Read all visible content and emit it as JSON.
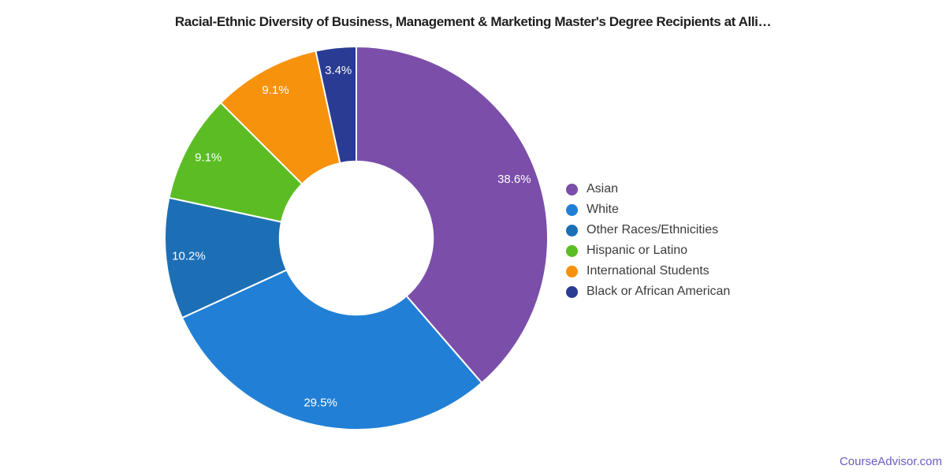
{
  "title": "Racial-Ethnic Diversity of Business, Management & Marketing Master's Degree Recipients at Alli…",
  "watermark": "CourseAdvisor.com",
  "colors": {
    "background": "#ffffff",
    "title_text": "#1f1f1f",
    "legend_text": "#3b3b3b",
    "watermark_text": "#6a5cc4",
    "slice_label_text": "#ffffff",
    "slice_divider": "#ffffff"
  },
  "chart_data": {
    "type": "pie",
    "subtype": "donut",
    "title": "Racial-Ethnic Diversity of Business, Management & Marketing Master's Degree Recipients at Alli…",
    "legend_position": "right",
    "start_angle_deg": 0,
    "direction": "clockwise",
    "inner_radius_ratio": 0.4,
    "label_radius_ratio": 0.88,
    "slices": [
      {
        "label": "Asian",
        "value": 38.6,
        "display": "38.6%",
        "color": "#7B4FA9"
      },
      {
        "label": "White",
        "value": 29.5,
        "display": "29.5%",
        "color": "#2180D6"
      },
      {
        "label": "Other Races/Ethnicities",
        "value": 10.2,
        "display": "10.2%",
        "color": "#1D6FB5"
      },
      {
        "label": "Hispanic or Latino",
        "value": 9.1,
        "display": "9.1%",
        "color": "#5BBD23"
      },
      {
        "label": "International Students",
        "value": 9.1,
        "display": "9.1%",
        "color": "#F7920D"
      },
      {
        "label": "Black or African American",
        "value": 3.4,
        "display": "3.4%",
        "color": "#2A3B93"
      }
    ]
  }
}
